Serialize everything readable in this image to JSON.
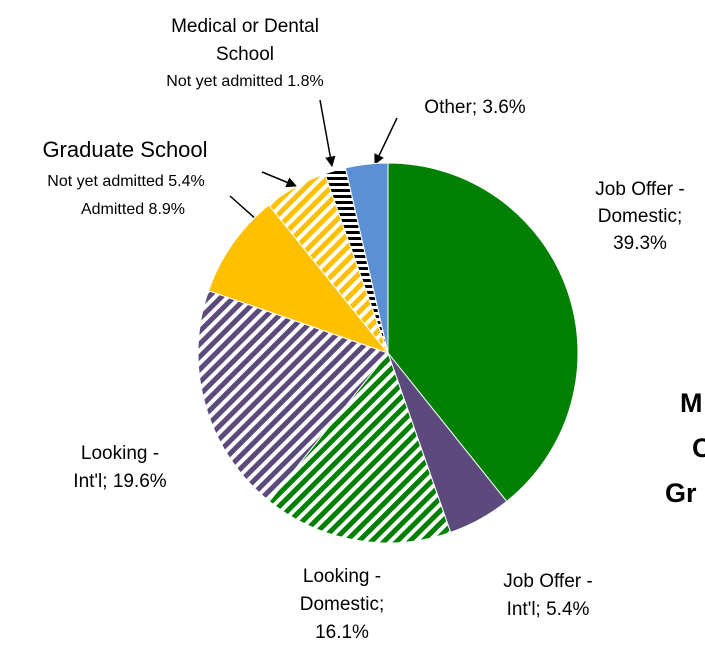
{
  "chart_data": {
    "type": "pie",
    "values": [
      39.3,
      5.4,
      16.1,
      19.6,
      8.9,
      5.4,
      1.8,
      3.6
    ],
    "value_labels": [
      [
        "Job Offer -",
        "Domestic;",
        "39.3%"
      ],
      [
        "Job Offer -",
        "Int'l; 5.4%"
      ],
      [
        "Looking -",
        "Domestic;",
        "16.1%"
      ],
      [
        "Looking -",
        "Int'l; 19.6%"
      ],
      [
        "Admitted 8.9%"
      ],
      [
        "Not yet admitted 5.4%"
      ],
      [
        "Not yet admitted 1.8%"
      ],
      [
        "Other; 3.6%"
      ]
    ],
    "colors": [
      "#008000",
      "#5c4a7c",
      "#008000",
      "#5c4a7c",
      "#ffc000",
      "#ffc000",
      "#000000",
      "#5b8fd6"
    ],
    "patterns": [
      null,
      null,
      "diagonal",
      "diagonal",
      null,
      "diagonal",
      "horizontal",
      null
    ],
    "groups": [
      [
        "Graduate School"
      ],
      [
        "Medical or Dental",
        "School"
      ]
    ],
    "title": [
      "M",
      "C",
      "Gr"
    ]
  }
}
